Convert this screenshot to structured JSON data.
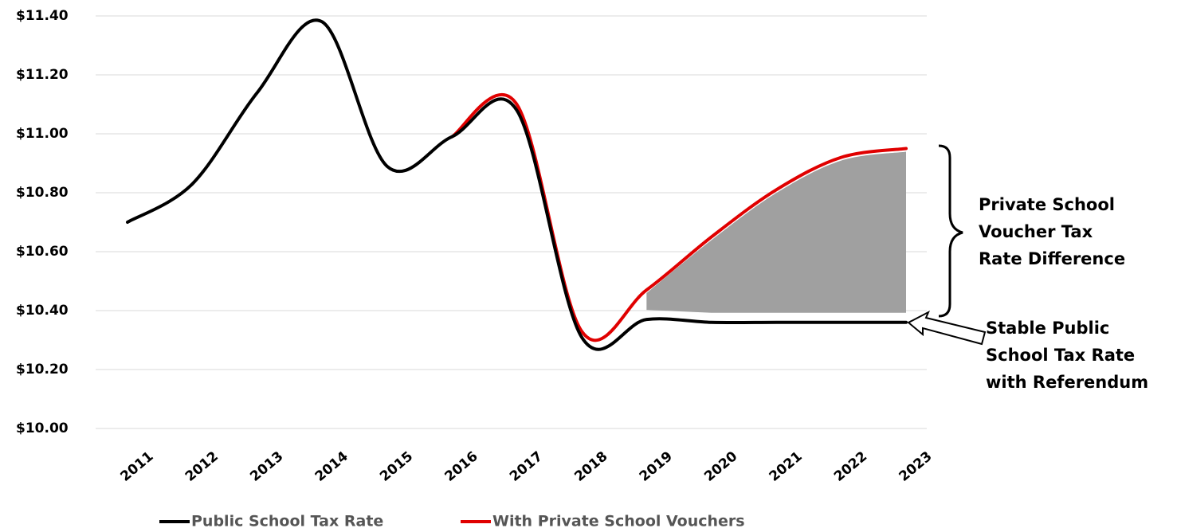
{
  "chart_data": {
    "type": "line",
    "categories": [
      "2011",
      "2012",
      "2013",
      "2014",
      "2015",
      "2016",
      "2017",
      "2018",
      "2019",
      "2020",
      "2021",
      "2022",
      "2023"
    ],
    "series": [
      {
        "name": "Public School Tax Rate",
        "color": "#000000",
        "values": [
          10.7,
          10.83,
          11.14,
          11.38,
          10.89,
          10.99,
          11.08,
          10.31,
          10.37,
          10.36,
          10.36,
          10.36,
          10.36
        ]
      },
      {
        "name": "With Private School Vouchers",
        "color": "#e00000",
        "values": [
          null,
          null,
          null,
          null,
          null,
          10.99,
          11.1,
          10.33,
          10.47,
          10.65,
          10.81,
          10.92,
          10.95
        ]
      }
    ],
    "ylim": [
      10.0,
      11.4
    ],
    "yticks": [
      {
        "value": 10.0,
        "label": "$10.00"
      },
      {
        "value": 10.2,
        "label": "$10.20"
      },
      {
        "value": 10.4,
        "label": "$10.40"
      },
      {
        "value": 10.6,
        "label": "$10.60"
      },
      {
        "value": 10.8,
        "label": "$10.80"
      },
      {
        "value": 11.0,
        "label": "$11.00"
      },
      {
        "value": 11.2,
        "label": "$11.20"
      },
      {
        "value": 11.4,
        "label": "$11.40"
      }
    ],
    "grid": true,
    "legend": "bottom",
    "annotations": [
      {
        "lines": [
          "Private School",
          "Voucher Tax",
          "Rate Difference"
        ]
      },
      {
        "lines": [
          "Stable Public",
          "School Tax Rate",
          "with Referendum"
        ]
      }
    ]
  }
}
